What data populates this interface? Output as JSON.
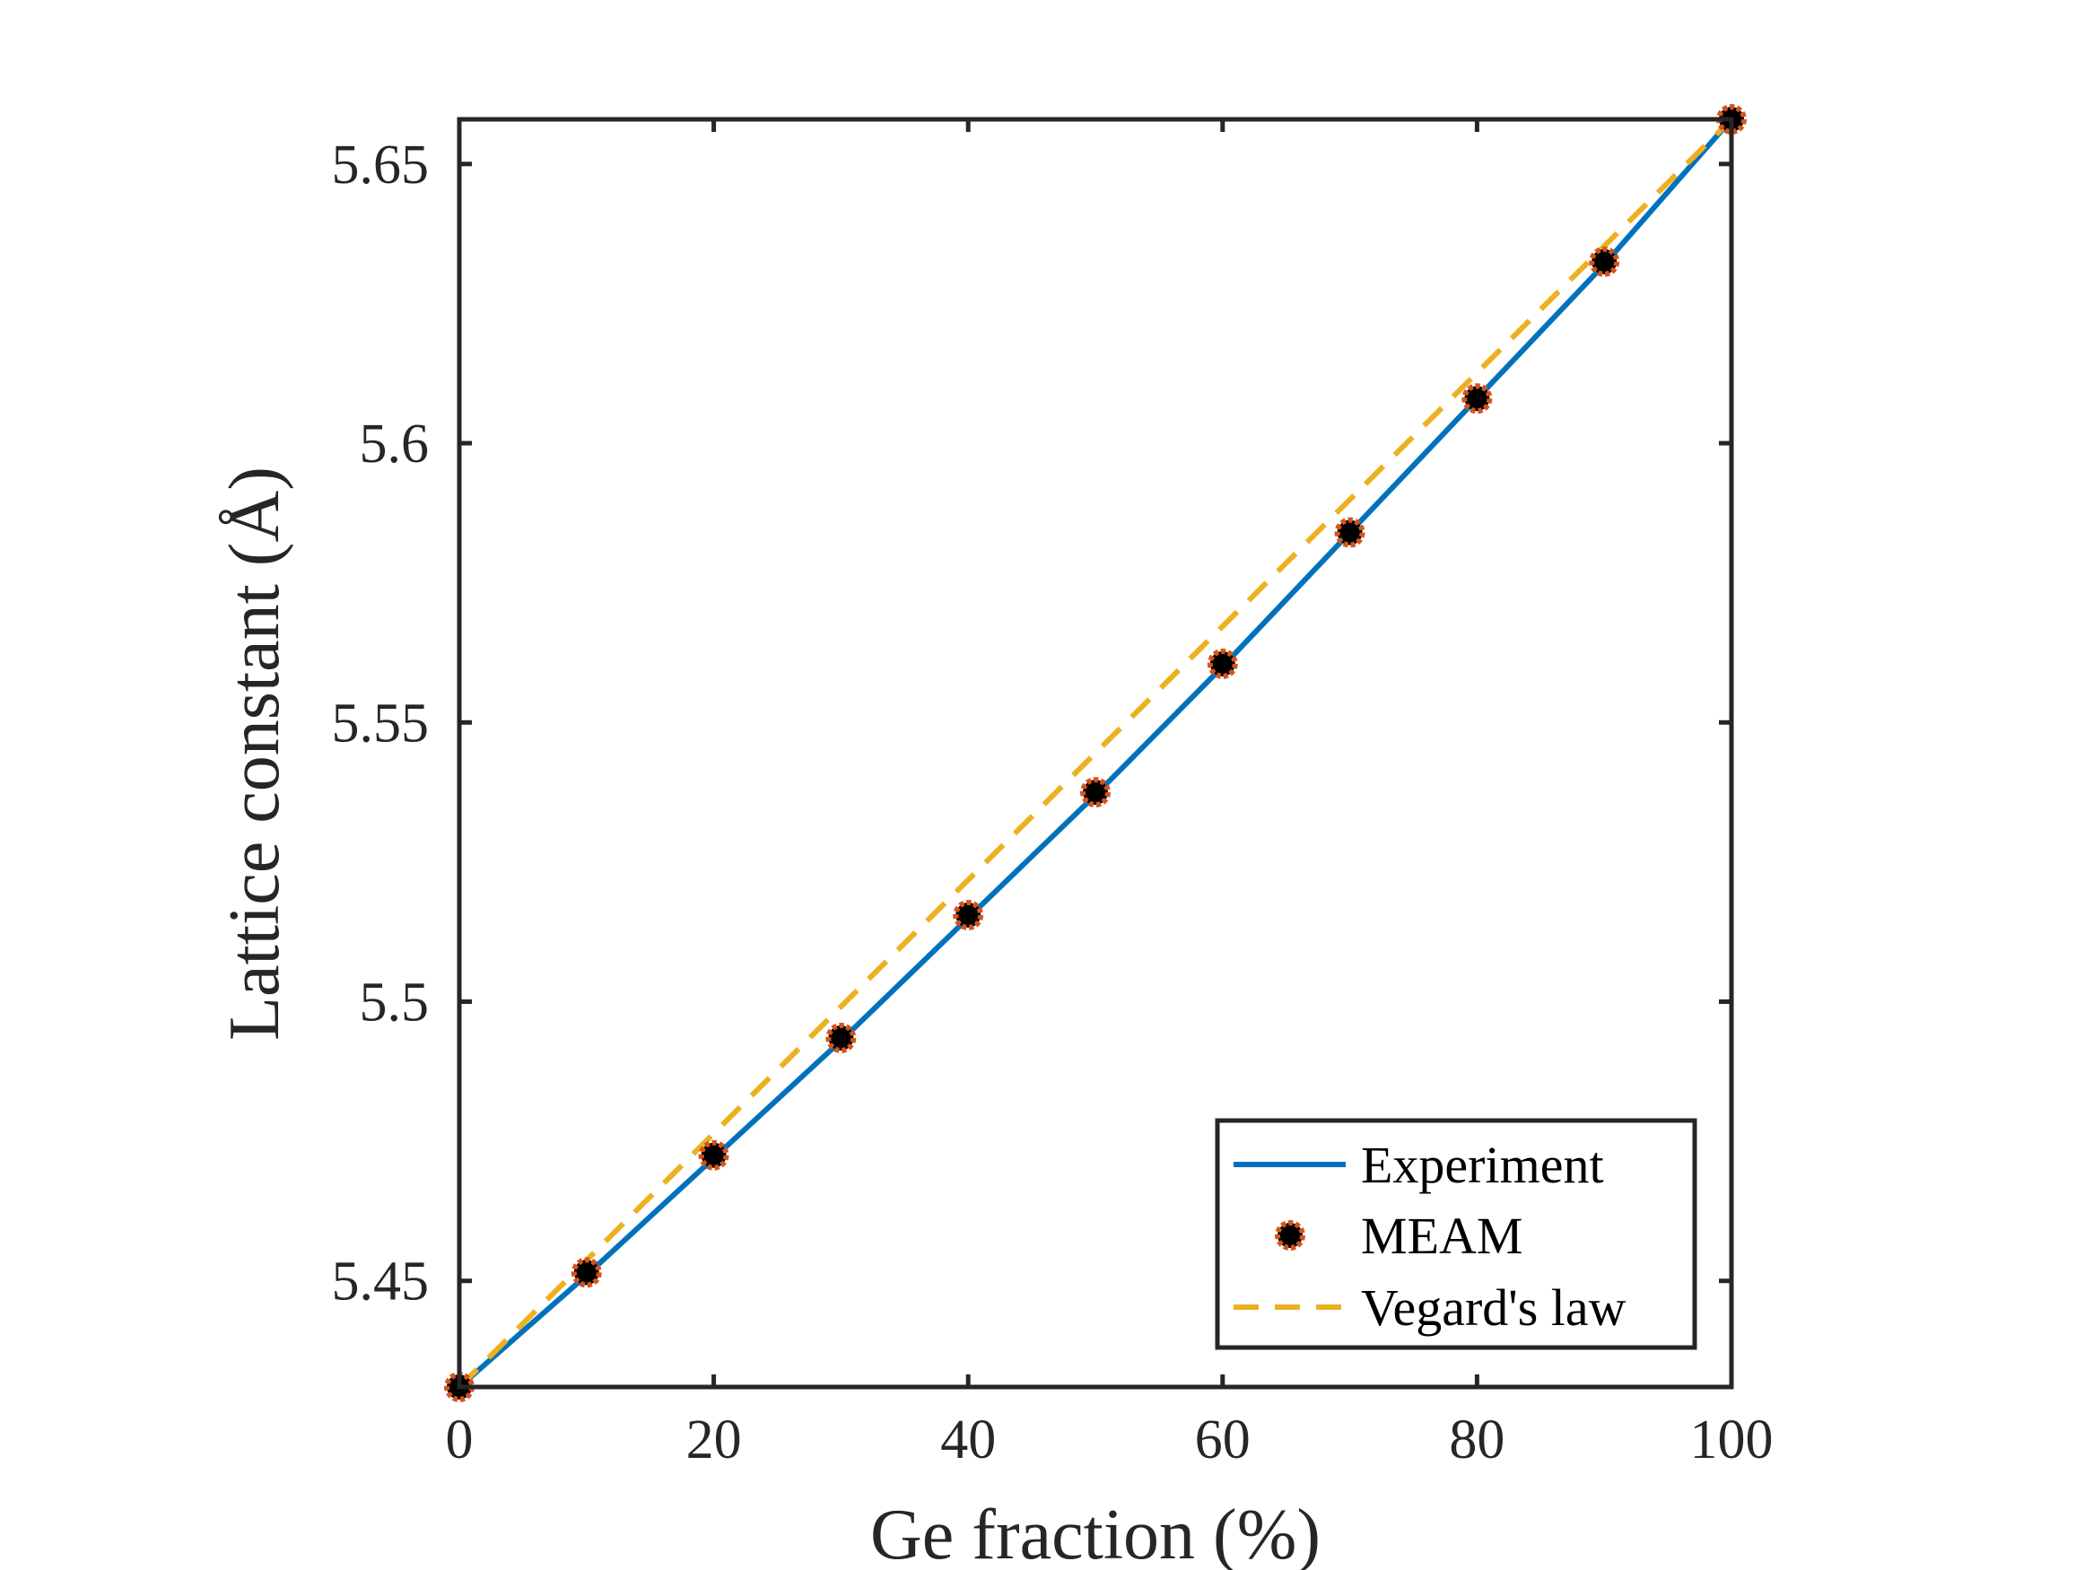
{
  "chart_data": {
    "type": "line",
    "xlabel": "Ge fraction (%)",
    "ylabel": "Lattice constant (Å)",
    "xlim": [
      0,
      100
    ],
    "ylim": [
      5.431,
      5.658
    ],
    "xticks": [
      0,
      20,
      40,
      60,
      80,
      100
    ],
    "xtick_labels": [
      "0",
      "20",
      "40",
      "60",
      "80",
      "100"
    ],
    "yticks": [
      5.45,
      5.5,
      5.55,
      5.6,
      5.65
    ],
    "ytick_labels": [
      "5.45",
      "5.5",
      "5.55",
      "5.6",
      "5.65"
    ],
    "grid": false,
    "legend_position": "bottom-right",
    "series": [
      {
        "name": "Experiment",
        "style": "solid-line",
        "color": "#0072BD",
        "x": [
          0,
          10,
          20,
          30,
          40,
          50,
          60,
          70,
          80,
          90,
          100
        ],
        "y": [
          5.431,
          5.451,
          5.472,
          5.493,
          5.515,
          5.537,
          5.56,
          5.584,
          5.608,
          5.632,
          5.658
        ]
      },
      {
        "name": "MEAM",
        "style": "markers",
        "color": "#000000",
        "edge_color": "#D95319",
        "x": [
          0,
          10,
          20,
          30,
          40,
          50,
          60,
          70,
          80,
          90,
          100
        ],
        "y": [
          5.431,
          5.4515,
          5.4725,
          5.4935,
          5.5155,
          5.5375,
          5.5605,
          5.584,
          5.608,
          5.6325,
          5.658
        ]
      },
      {
        "name": "Vegard's law",
        "style": "dashed-line",
        "color": "#EDB120",
        "x": [
          0,
          100
        ],
        "y": [
          5.431,
          5.658
        ]
      }
    ]
  }
}
